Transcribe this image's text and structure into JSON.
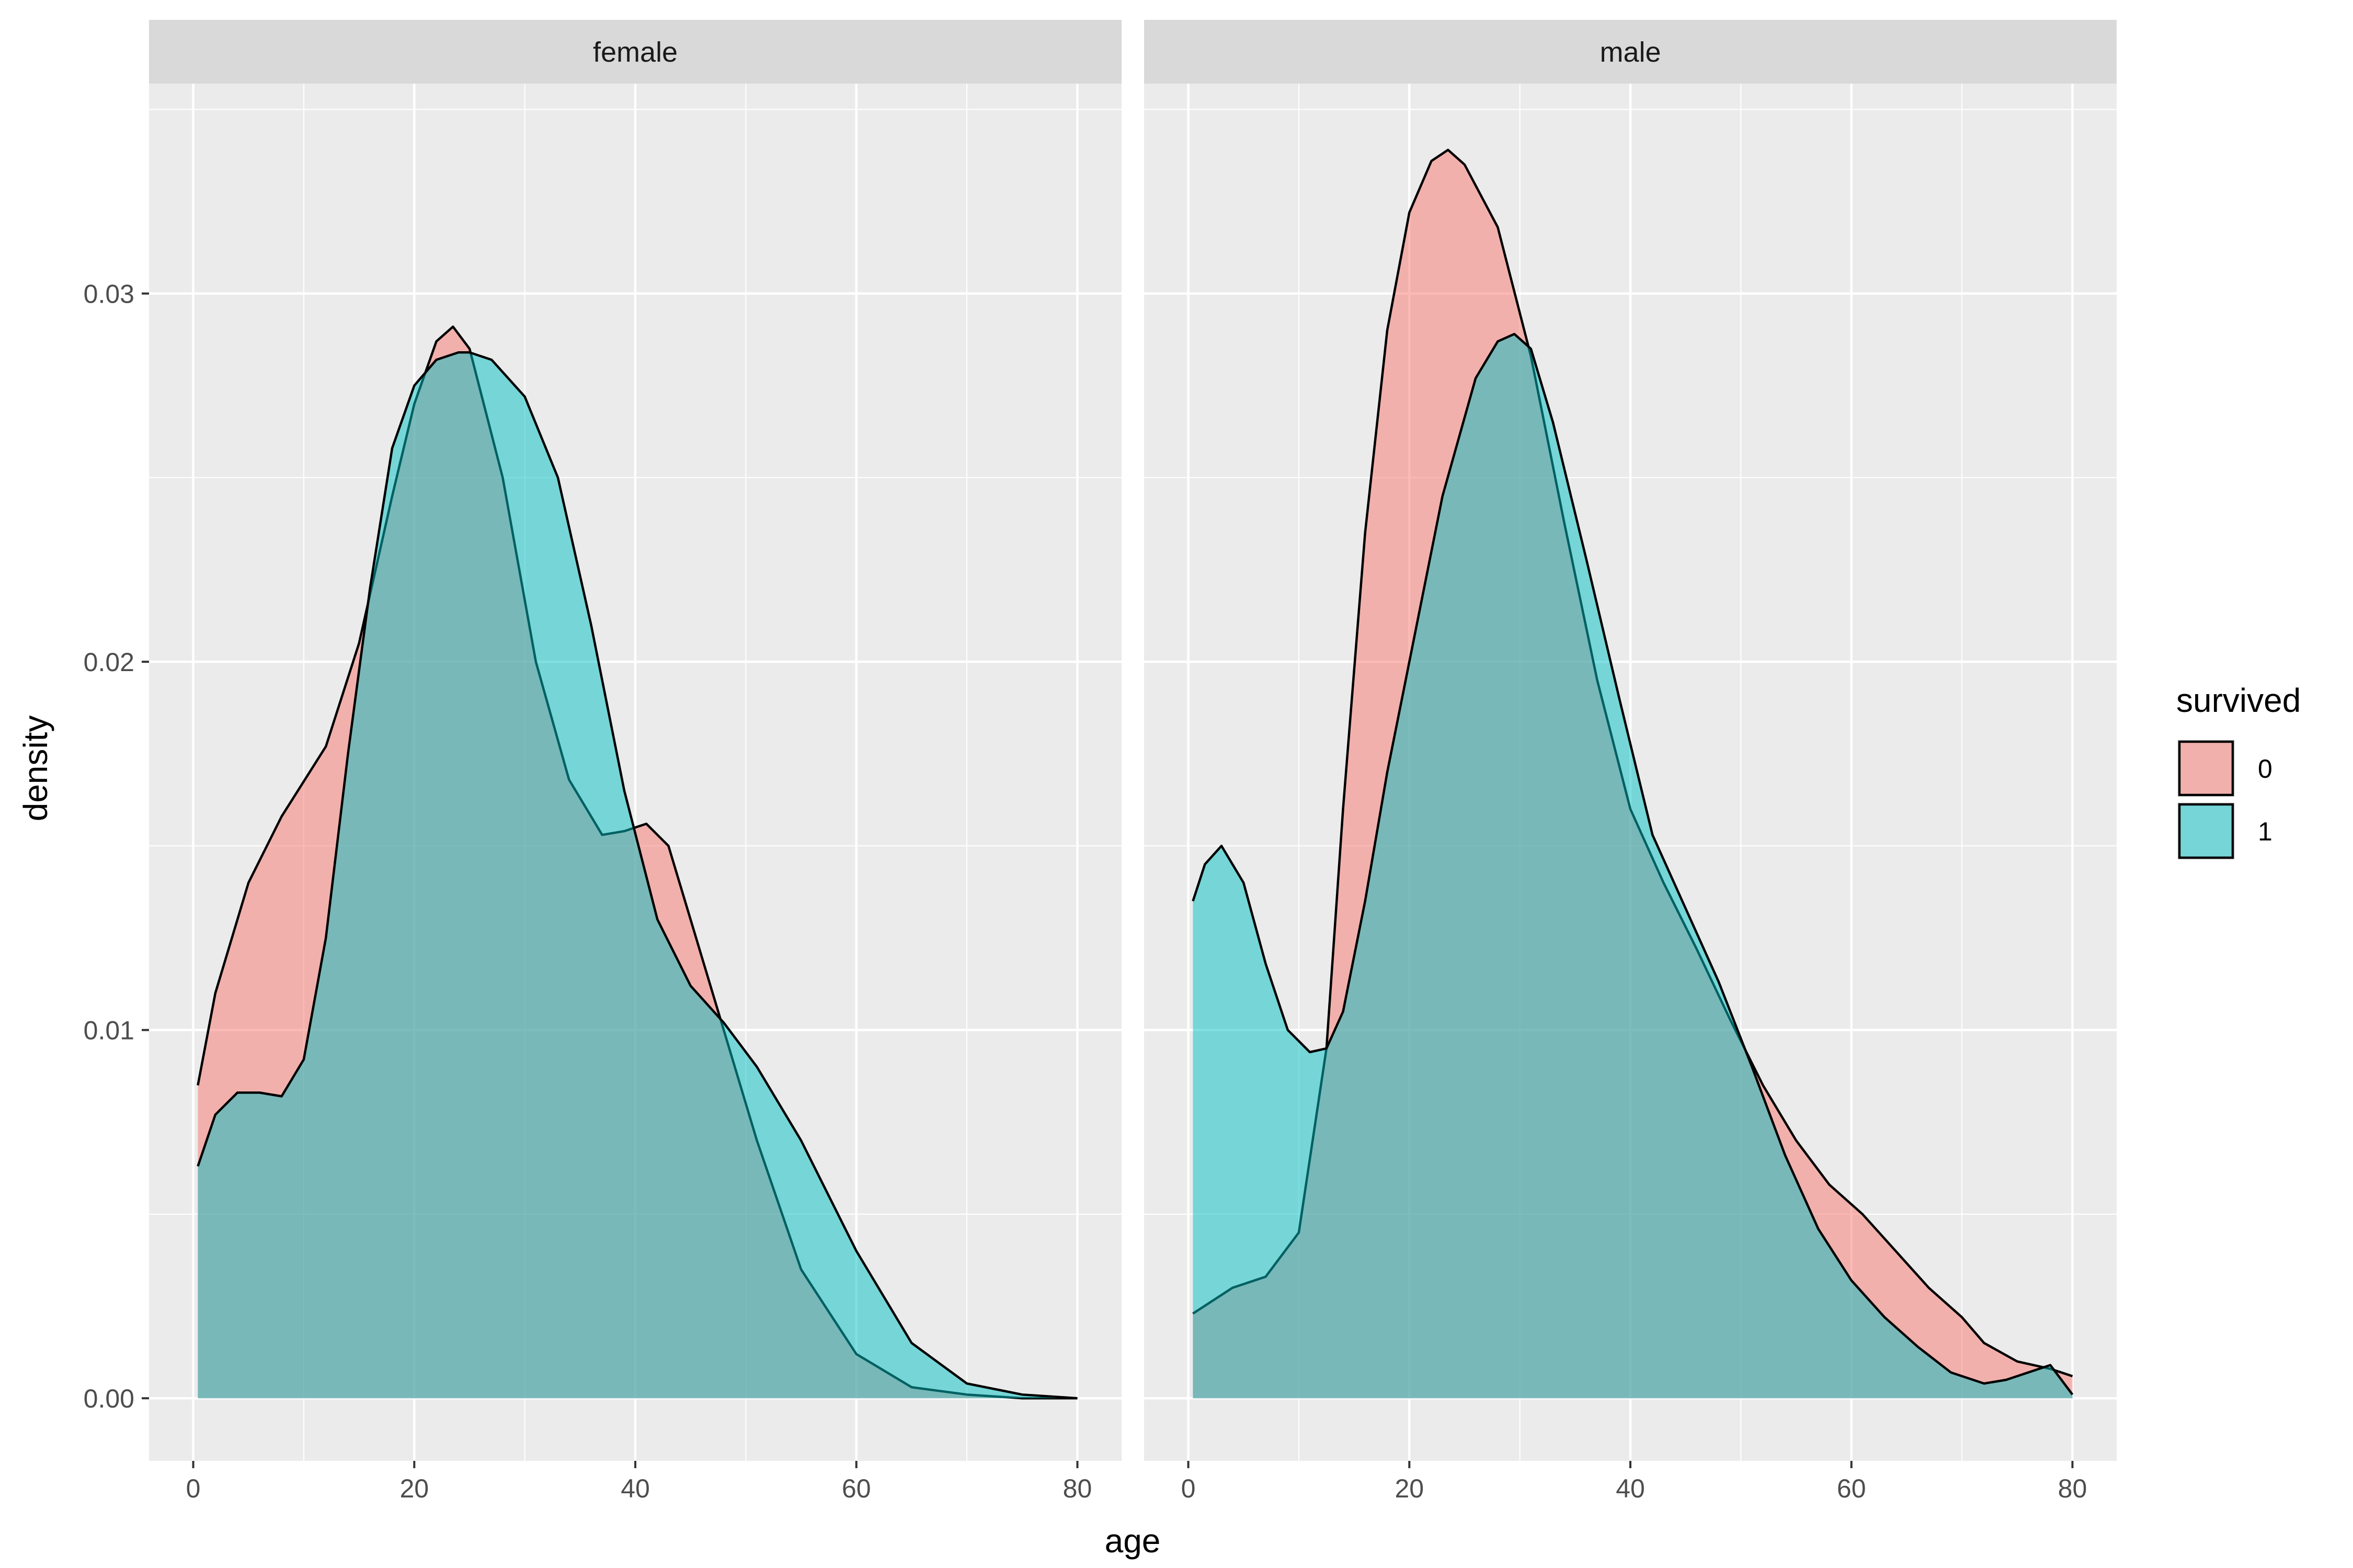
{
  "chart_data": {
    "type": "area",
    "xlabel": "age",
    "ylabel": "density",
    "xlim": [
      -4,
      84
    ],
    "ylim": [
      -0.0017,
      0.0357
    ],
    "xticks": [
      0,
      20,
      40,
      60,
      80
    ],
    "xtick_labels": [
      "0",
      "20",
      "40",
      "60",
      "80"
    ],
    "yticks": [
      0.0,
      0.01,
      0.02,
      0.03
    ],
    "ytick_labels": [
      "0.00",
      "0.01",
      "0.02",
      "0.03"
    ],
    "grid": true,
    "legend": {
      "title": "survived",
      "position": "right",
      "entries": [
        {
          "label": "0",
          "color": "#F8766D"
        },
        {
          "label": "1",
          "color": "#00BFC4"
        }
      ]
    },
    "colors": {
      "0": "#F8766D",
      "1": "#00BFC4",
      "panel_bg": "#EBEBEB",
      "strip_bg": "#D9D9D9",
      "grid": "#FFFFFF"
    },
    "facets": [
      {
        "label": "female",
        "series": [
          {
            "name": "0",
            "x": [
              0.42,
              2,
              5,
              8,
              12,
              15,
              18,
              20,
              22,
              23.5,
              25,
              28,
              31,
              34,
              37,
              39,
              41,
              43,
              45,
              48,
              51,
              55,
              60,
              65,
              70,
              75,
              80
            ],
            "y": [
              0.0085,
              0.011,
              0.014,
              0.0158,
              0.0177,
              0.0205,
              0.0245,
              0.027,
              0.0287,
              0.0291,
              0.0285,
              0.025,
              0.02,
              0.0168,
              0.0153,
              0.0154,
              0.0156,
              0.015,
              0.013,
              0.01,
              0.007,
              0.0035,
              0.0012,
              0.0003,
              0.0001,
              0.0,
              0.0
            ]
          },
          {
            "name": "1",
            "x": [
              0.42,
              2,
              4,
              6,
              8,
              10,
              12,
              14,
              16,
              18,
              20,
              22,
              24,
              25,
              27,
              30,
              33,
              36,
              39,
              42,
              45,
              48,
              51,
              55,
              60,
              65,
              70,
              75,
              80
            ],
            "y": [
              0.0063,
              0.0077,
              0.0083,
              0.0083,
              0.0082,
              0.0092,
              0.0125,
              0.0175,
              0.022,
              0.0258,
              0.0275,
              0.0282,
              0.0284,
              0.0284,
              0.0282,
              0.0272,
              0.025,
              0.021,
              0.0165,
              0.013,
              0.0112,
              0.0102,
              0.009,
              0.007,
              0.004,
              0.0015,
              0.0004,
              0.0001,
              0.0
            ]
          }
        ]
      },
      {
        "label": "male",
        "series": [
          {
            "name": "0",
            "x": [
              0.42,
              4,
              7,
              10,
              12.5,
              14,
              16,
              18,
              20,
              22,
              23.5,
              25,
              28,
              31,
              34,
              37,
              40,
              43,
              46,
              49,
              52,
              55,
              58,
              61,
              64,
              67,
              70,
              72,
              75,
              78,
              80
            ],
            "y": [
              0.0023,
              0.003,
              0.0033,
              0.0045,
              0.0095,
              0.016,
              0.0235,
              0.029,
              0.0322,
              0.0336,
              0.0339,
              0.0335,
              0.0318,
              0.0283,
              0.0238,
              0.0195,
              0.016,
              0.014,
              0.0122,
              0.0103,
              0.0085,
              0.007,
              0.0058,
              0.005,
              0.004,
              0.003,
              0.0022,
              0.0015,
              0.001,
              0.0008,
              0.0006
            ]
          },
          {
            "name": "1",
            "x": [
              0.42,
              1.5,
              3,
              5,
              7,
              9,
              11,
              12.5,
              14,
              16,
              18,
              20,
              23,
              26,
              28,
              29.5,
              31,
              33,
              36,
              39,
              42,
              45,
              48,
              51,
              54,
              57,
              60,
              63,
              66,
              69,
              72,
              74,
              76,
              78,
              80
            ],
            "y": [
              0.0135,
              0.0145,
              0.015,
              0.014,
              0.0118,
              0.01,
              0.0094,
              0.0095,
              0.0105,
              0.0135,
              0.017,
              0.02,
              0.0245,
              0.0277,
              0.0287,
              0.0289,
              0.0285,
              0.0265,
              0.0228,
              0.019,
              0.0153,
              0.0133,
              0.0113,
              0.009,
              0.0066,
              0.0046,
              0.0032,
              0.0022,
              0.0014,
              0.0007,
              0.0004,
              0.0005,
              0.0007,
              0.0009,
              0.0001
            ]
          }
        ]
      }
    ]
  }
}
